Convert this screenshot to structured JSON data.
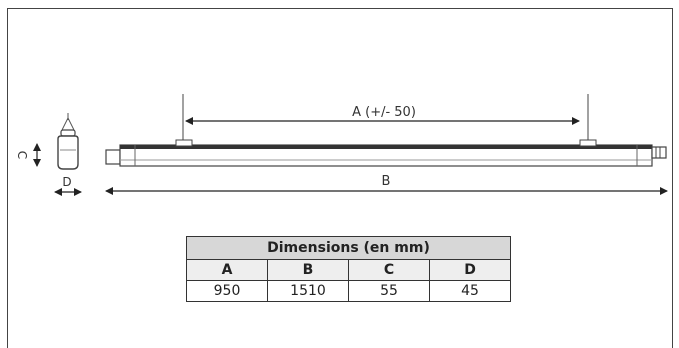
{
  "diagram": {
    "dim_a_label": "A (+/- 50)",
    "dim_b_label": "B",
    "dim_c_label": "C",
    "dim_d_label": "D"
  },
  "table": {
    "title": "Dimensions (en mm)",
    "headers": [
      "A",
      "B",
      "C",
      "D"
    ],
    "values": [
      "950",
      "1510",
      "55",
      "45"
    ]
  }
}
